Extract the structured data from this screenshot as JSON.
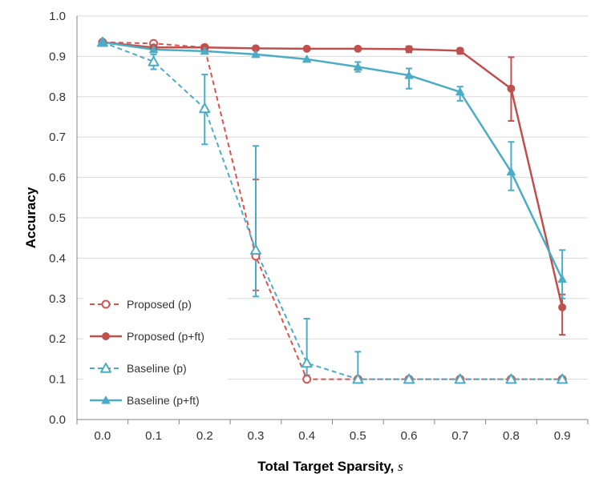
{
  "chart_data": {
    "type": "line",
    "title": "",
    "xlabel": "Total Target Sparsity, ",
    "xlabel_symbol": "s",
    "ylabel": "Accuracy",
    "categories": [
      "0.0",
      "0.1",
      "0.2",
      "0.3",
      "0.4",
      "0.5",
      "0.6",
      "0.7",
      "0.8",
      "0.9"
    ],
    "ylim": [
      0,
      1.0
    ],
    "yticks": [
      "0.0",
      "0.1",
      "0.2",
      "0.3",
      "0.4",
      "0.5",
      "0.6",
      "0.7",
      "0.8",
      "0.9",
      "1.0"
    ],
    "grid": "horizontal",
    "legend_position": "bottom-left",
    "series": [
      {
        "name": "Proposed (p)",
        "color": "#d9534f",
        "dash": true,
        "marker": "circle-open",
        "values": [
          0.935,
          0.932,
          0.922,
          0.405,
          0.1,
          0.1,
          0.1,
          0.1,
          0.1,
          0.1
        ],
        "errors": [
          null,
          null,
          null,
          [
            0.32,
            0.595
          ],
          null,
          null,
          null,
          null,
          null,
          null
        ]
      },
      {
        "name": "Proposed (p+ft)",
        "color": "#c0504d",
        "dash": false,
        "marker": "circle-filled",
        "values": [
          0.935,
          0.922,
          0.922,
          0.92,
          0.919,
          0.919,
          0.918,
          0.914,
          0.82,
          0.278
        ],
        "errors": [
          null,
          null,
          null,
          null,
          null,
          null,
          [
            0.91,
            0.925
          ],
          [
            0.906,
            0.92
          ],
          [
            0.74,
            0.898
          ],
          [
            0.21,
            0.31
          ]
        ]
      },
      {
        "name": "Baseline (p)",
        "color": "#4bacc6",
        "dash": true,
        "marker": "triangle-open",
        "values": [
          0.935,
          0.887,
          0.771,
          0.42,
          0.14,
          0.1,
          0.1,
          0.1,
          0.1,
          0.1
        ],
        "errors": [
          null,
          [
            0.868,
            0.905
          ],
          [
            0.682,
            0.855
          ],
          [
            0.305,
            0.678
          ],
          [
            0.11,
            0.25
          ],
          [
            0.1,
            0.168
          ],
          null,
          null,
          null,
          null
        ]
      },
      {
        "name": "Baseline (p+ft)",
        "color": "#4bacc6",
        "dash": false,
        "marker": "triangle-filled",
        "values": [
          0.935,
          0.917,
          0.913,
          0.905,
          0.893,
          0.874,
          0.853,
          0.812,
          0.614,
          0.348
        ],
        "errors": [
          null,
          null,
          null,
          null,
          null,
          [
            0.862,
            0.886
          ],
          [
            0.82,
            0.87
          ],
          [
            0.79,
            0.825
          ],
          [
            0.568,
            0.688
          ],
          [
            0.3,
            0.42
          ]
        ]
      }
    ]
  }
}
